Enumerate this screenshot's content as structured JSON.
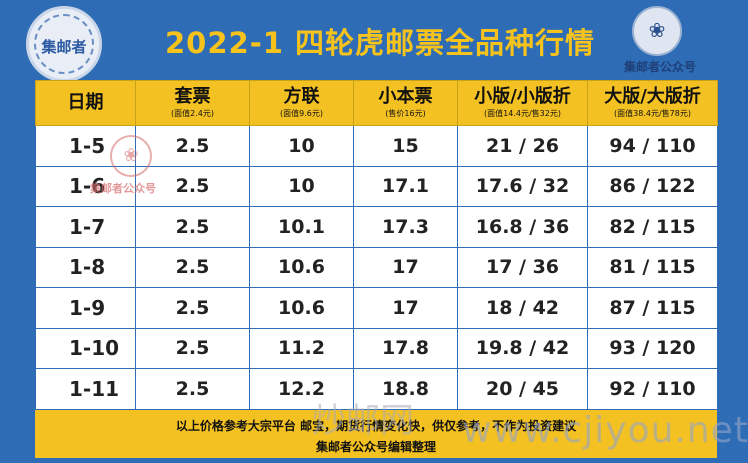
{
  "title": "2022-1 四轮虎邮票全品种行情",
  "logo_left_text": "集邮者",
  "logo_right_caption": "集邮者公众号",
  "table": {
    "headers": [
      {
        "label": "日期",
        "sub": ""
      },
      {
        "label": "套票",
        "sub": "(面值2.4元)"
      },
      {
        "label": "方联",
        "sub": "(面值9.6元)"
      },
      {
        "label": "小本票",
        "sub": "(售价16元)"
      },
      {
        "label": "小版/小版折",
        "sub": "(面值14.4元/售32元)"
      },
      {
        "label": "大版/大版折",
        "sub": "(面值38.4元/售78元)"
      }
    ],
    "rows": [
      [
        "1-5",
        "2.5",
        "10",
        "15",
        "21 / 26",
        "94 / 110"
      ],
      [
        "1-6",
        "2.5",
        "10",
        "17.1",
        "17.6 / 32",
        "86 / 122"
      ],
      [
        "1-7",
        "2.5",
        "10.1",
        "17.3",
        "16.8 / 36",
        "82 / 115"
      ],
      [
        "1-8",
        "2.5",
        "10.6",
        "17",
        "17 / 36",
        "81 / 115"
      ],
      [
        "1-9",
        "2.5",
        "10.6",
        "17",
        "18 / 42",
        "87 / 115"
      ],
      [
        "1-10",
        "2.5",
        "11.2",
        "17.8",
        "19.8 / 42",
        "93 / 120"
      ],
      [
        "1-11",
        "2.5",
        "12.2",
        "18.8",
        "20 / 45",
        "92 / 110"
      ]
    ]
  },
  "footer": {
    "line1": "以上价格参考大宗平台 邮宝，期货行情变化快，供仅参考，不作为投资建议",
    "line2": "集邮者公众号编辑整理"
  },
  "watermarks": {
    "seal_text": "集邮者公众号",
    "big_text": "炒邮网",
    "url": "www.cjiyou.net"
  },
  "colors": {
    "background": "#2e6cb6",
    "accent_yellow": "#f3c121",
    "title_yellow": "#f6c21c"
  }
}
